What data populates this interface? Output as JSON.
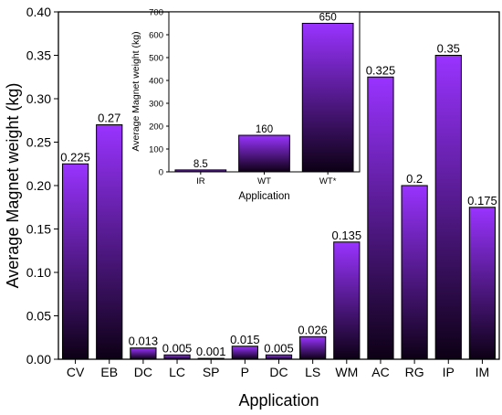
{
  "chart_data": [
    {
      "type": "bar",
      "title": "",
      "xlabel": "Application",
      "ylabel": "Average Magnet weight (kg)",
      "categories": [
        "CV",
        "EB",
        "DC",
        "LC",
        "SP",
        "P",
        "DC",
        "LS",
        "WM",
        "AC",
        "RG",
        "IP",
        "IM"
      ],
      "values": [
        0.225,
        0.27,
        0.013,
        0.005,
        0.001,
        0.015,
        0.005,
        0.026,
        0.135,
        0.325,
        0.2,
        0.35,
        0.175
      ],
      "data_labels": [
        "0.225",
        "0.27",
        "0.013",
        "0.005",
        "0.001",
        "0.015",
        "0.005",
        "0.026",
        "0.135",
        "0.325",
        "0.2",
        "0.35",
        "0.175"
      ],
      "ylim": [
        0,
        0.4
      ],
      "yticks": [
        "0.00",
        "0.05",
        "0.10",
        "0.15",
        "0.20",
        "0.25",
        "0.30",
        "0.35",
        "0.40"
      ],
      "ytick_values": [
        0,
        0.05,
        0.1,
        0.15,
        0.2,
        0.25,
        0.3,
        0.35,
        0.4
      ],
      "grid": false,
      "bar_gradient": [
        "#9933ff",
        "#0d0015"
      ]
    },
    {
      "type": "bar",
      "title": "",
      "xlabel": "Application",
      "ylabel": "Average Magnet weight (kg)",
      "categories": [
        "IR",
        "WT",
        "WT*"
      ],
      "values": [
        8.5,
        160,
        650
      ],
      "data_labels": [
        "8.5",
        "160",
        "650"
      ],
      "ylim": [
        0,
        700
      ],
      "yticks": [
        "0",
        "100",
        "200",
        "300",
        "400",
        "500",
        "600",
        "700"
      ],
      "ytick_values": [
        0,
        100,
        200,
        300,
        400,
        500,
        600,
        700
      ],
      "grid": false,
      "bar_gradient": [
        "#9933ff",
        "#0d0015"
      ]
    }
  ]
}
